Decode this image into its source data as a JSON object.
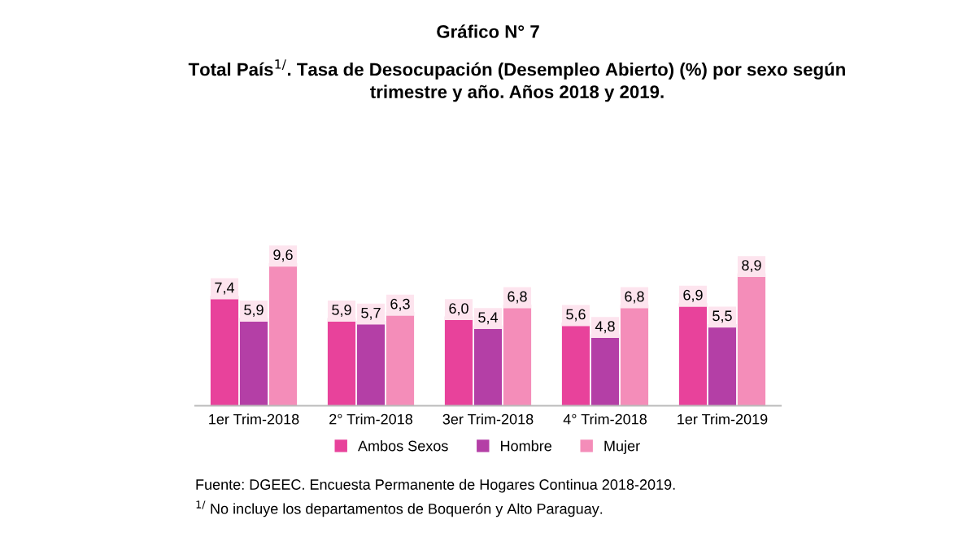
{
  "chart_data": {
    "type": "bar",
    "title": "Gráfico N° 7",
    "subtitle": "Total País$^{1/}$. Tasa de Desocupación (Desempleo Abierto) (%) por sexo según\ntrimestre y año. Años 2018 y 2019.",
    "categories": [
      "1er Trim-2018",
      "2° Trim-2018",
      "3er Trim-2018",
      "4° Trim-2018",
      "1er Trim-2019"
    ],
    "series": [
      {
        "name": "Ambos Sexos",
        "color": "#e8429b",
        "values": [
          7.4,
          5.9,
          6.0,
          5.6,
          6.9
        ],
        "value_labels": [
          "7,4",
          "5,9",
          "6,0",
          "5,6",
          "6,9"
        ]
      },
      {
        "name": "Hombre",
        "color": "#b43fa6",
        "values": [
          5.9,
          5.7,
          5.4,
          4.8,
          5.5
        ],
        "value_labels": [
          "5,9",
          "5,7",
          "5,4",
          "4,8",
          "5,5"
        ]
      },
      {
        "name": "Mujer",
        "color": "#f48db9",
        "values": [
          9.6,
          6.3,
          6.8,
          6.8,
          8.9
        ],
        "value_labels": [
          "9,6",
          "6,3",
          "6,8",
          "6,8",
          "8,9"
        ]
      }
    ],
    "legend": "bottom",
    "grid": false,
    "annotations": [
      "Fuente: DGEEC. Encuesta Permanente de Hogares Continua 2018-2019.",
      "$^{1/}$ No incluye los departamentos de Boquerón y Alto Paraguay."
    ]
  }
}
